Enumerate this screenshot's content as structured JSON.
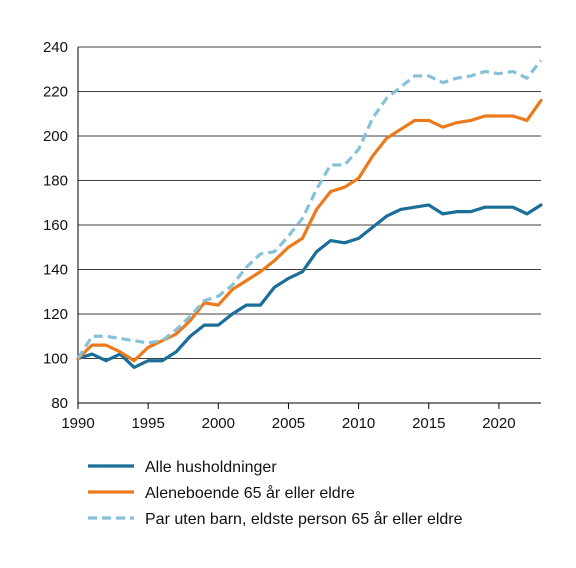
{
  "chart_data": {
    "type": "line",
    "title": "",
    "xlabel": "",
    "ylabel": "",
    "xlim": [
      1990,
      2023
    ],
    "ylim": [
      80,
      240
    ],
    "xticks": [
      1990,
      1995,
      2000,
      2005,
      2010,
      2015,
      2020
    ],
    "yticks": [
      80,
      100,
      120,
      140,
      160,
      180,
      200,
      220,
      240
    ],
    "grid": "horizontal",
    "legend_position": "bottom",
    "x": [
      1990,
      1991,
      1992,
      1993,
      1994,
      1995,
      1996,
      1997,
      1998,
      1999,
      2000,
      2001,
      2002,
      2003,
      2004,
      2005,
      2006,
      2007,
      2008,
      2009,
      2010,
      2011,
      2012,
      2013,
      2014,
      2015,
      2016,
      2017,
      2018,
      2019,
      2020,
      2021,
      2022,
      2023
    ],
    "series": [
      {
        "name": "Alle husholdninger",
        "color": "#1a6e97",
        "style": "solid",
        "values": [
          100,
          102,
          99,
          102,
          96,
          99,
          99,
          103,
          110,
          115,
          115,
          120,
          124,
          124,
          132,
          136,
          139,
          148,
          153,
          152,
          154,
          159,
          164,
          167,
          168,
          169,
          165,
          166,
          166,
          168,
          168,
          168,
          165,
          169
        ]
      },
      {
        "name": "Aleneboende 65 år eller eldre",
        "color": "#ec7a1c",
        "style": "solid",
        "values": [
          100,
          106,
          106,
          103,
          99,
          105,
          108,
          111,
          117,
          125,
          124,
          131,
          135,
          139,
          144,
          150,
          154,
          167,
          175,
          177,
          181,
          191,
          199,
          203,
          207,
          207,
          204,
          206,
          207,
          209,
          209,
          209,
          207,
          216
        ]
      },
      {
        "name": "Par uten barn, eldste person 65 år eller eldre",
        "color": "#85c1d7",
        "style": "dashed",
        "values": [
          100,
          110,
          110,
          109,
          108,
          107,
          108,
          113,
          119,
          126,
          128,
          133,
          141,
          147,
          148,
          155,
          163,
          176,
          187,
          187,
          194,
          208,
          217,
          222,
          227,
          227,
          224,
          226,
          227,
          229,
          228,
          229,
          226,
          234
        ]
      }
    ]
  }
}
